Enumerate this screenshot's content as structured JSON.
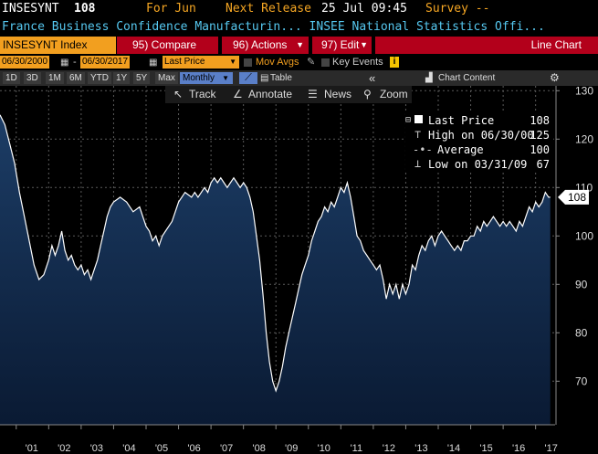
{
  "header": {
    "ticker": "INSESYNT",
    "last": "108",
    "for_label": "For Jun",
    "release_label": "Next Release",
    "release_date": "25 Jul 09:45",
    "survey_label": "Survey --",
    "description": "France Business Confidence Manufacturin... INSEE National Statistics Offi..."
  },
  "tabs": {
    "index": "INSESYNT Index",
    "compare": "95) Compare",
    "actions": "96) Actions",
    "edit": "97) Edit",
    "chart_type": "Line Chart"
  },
  "controls": {
    "start_date": "06/30/2000",
    "end_date": "06/30/2017",
    "price_field": "Last Price",
    "mov_avgs": "Mov Avgs",
    "key_events": "Key Events",
    "periods": [
      "1D",
      "3D",
      "1M",
      "6M",
      "YTD",
      "1Y",
      "5Y",
      "Max"
    ],
    "frequency": "Monthly",
    "table": "Table",
    "chart_content": "Chart Content"
  },
  "tools": {
    "track": "Track",
    "annotate": "Annotate",
    "news": "News",
    "zoom": "Zoom"
  },
  "legend": {
    "last_label": "Last Price",
    "last_value": "108",
    "high_label": "High on 06/30/00",
    "high_value": "125",
    "avg_label": "Average",
    "avg_value": "100",
    "low_label": "Low on 03/31/09",
    "low_value": "67"
  },
  "colors": {
    "line": "#ffffff",
    "area_top": "#1c3d66",
    "area_bottom": "#0a1a33",
    "orange": "#f29f1f",
    "red": "#b3001b",
    "cyan": "#56c8f0"
  },
  "chart_data": {
    "type": "area",
    "title": "",
    "xlabel": "",
    "ylabel": "",
    "ylim": [
      61,
      131
    ],
    "xlim": [
      2000.5,
      2017.6
    ],
    "yticks": [
      70,
      80,
      90,
      100,
      110,
      120,
      130
    ],
    "xticks": [
      {
        "label": "'01",
        "x": 2001.0
      },
      {
        "label": "'02",
        "x": 2002.0
      },
      {
        "label": "'03",
        "x": 2003.0
      },
      {
        "label": "'04",
        "x": 2004.0
      },
      {
        "label": "'05",
        "x": 2005.0
      },
      {
        "label": "'06",
        "x": 2006.0
      },
      {
        "label": "'07",
        "x": 2007.0
      },
      {
        "label": "'08",
        "x": 2008.0
      },
      {
        "label": "'09",
        "x": 2009.0
      },
      {
        "label": "'10",
        "x": 2010.0
      },
      {
        "label": "'11",
        "x": 2011.0
      },
      {
        "label": "'12",
        "x": 2012.0
      },
      {
        "label": "'13",
        "x": 2013.0
      },
      {
        "label": "'14",
        "x": 2014.0
      },
      {
        "label": "'15",
        "x": 2015.0
      },
      {
        "label": "'16",
        "x": 2016.0
      },
      {
        "label": "'17",
        "x": 2017.0
      }
    ],
    "last_value_label": "108",
    "series": [
      {
        "name": "Last Price",
        "points": [
          [
            2000.5,
            125
          ],
          [
            2000.65,
            123
          ],
          [
            2000.8,
            119
          ],
          [
            2000.95,
            115
          ],
          [
            2001.1,
            109
          ],
          [
            2001.25,
            104
          ],
          [
            2001.4,
            99
          ],
          [
            2001.55,
            94
          ],
          [
            2001.7,
            91
          ],
          [
            2001.85,
            92
          ],
          [
            2002.0,
            95
          ],
          [
            2002.1,
            98
          ],
          [
            2002.2,
            96
          ],
          [
            2002.3,
            98
          ],
          [
            2002.4,
            101
          ],
          [
            2002.5,
            97
          ],
          [
            2002.6,
            95
          ],
          [
            2002.7,
            96
          ],
          [
            2002.8,
            94
          ],
          [
            2002.9,
            93
          ],
          [
            2003.0,
            94
          ],
          [
            2003.1,
            92
          ],
          [
            2003.2,
            93
          ],
          [
            2003.3,
            91
          ],
          [
            2003.4,
            93
          ],
          [
            2003.5,
            95
          ],
          [
            2003.6,
            98
          ],
          [
            2003.7,
            101
          ],
          [
            2003.8,
            104
          ],
          [
            2003.9,
            106
          ],
          [
            2004.0,
            107
          ],
          [
            2004.2,
            108
          ],
          [
            2004.4,
            107
          ],
          [
            2004.6,
            105
          ],
          [
            2004.8,
            106
          ],
          [
            2004.9,
            104
          ],
          [
            2005.0,
            102
          ],
          [
            2005.1,
            101
          ],
          [
            2005.2,
            99
          ],
          [
            2005.3,
            100
          ],
          [
            2005.4,
            98
          ],
          [
            2005.5,
            100
          ],
          [
            2005.6,
            101
          ],
          [
            2005.8,
            103
          ],
          [
            2005.9,
            105
          ],
          [
            2006.0,
            107
          ],
          [
            2006.2,
            109
          ],
          [
            2006.4,
            108
          ],
          [
            2006.5,
            109
          ],
          [
            2006.6,
            108
          ],
          [
            2006.8,
            110
          ],
          [
            2006.9,
            109
          ],
          [
            2007.0,
            111
          ],
          [
            2007.1,
            112
          ],
          [
            2007.2,
            111
          ],
          [
            2007.3,
            112
          ],
          [
            2007.4,
            111
          ],
          [
            2007.5,
            110
          ],
          [
            2007.6,
            111
          ],
          [
            2007.7,
            112
          ],
          [
            2007.8,
            111
          ],
          [
            2007.9,
            110
          ],
          [
            2008.0,
            111
          ],
          [
            2008.1,
            110
          ],
          [
            2008.2,
            108
          ],
          [
            2008.3,
            105
          ],
          [
            2008.4,
            100
          ],
          [
            2008.5,
            95
          ],
          [
            2008.6,
            88
          ],
          [
            2008.7,
            80
          ],
          [
            2008.8,
            74
          ],
          [
            2008.9,
            70
          ],
          [
            2009.0,
            68
          ],
          [
            2009.1,
            70
          ],
          [
            2009.2,
            73
          ],
          [
            2009.3,
            77
          ],
          [
            2009.4,
            80
          ],
          [
            2009.5,
            83
          ],
          [
            2009.6,
            86
          ],
          [
            2009.7,
            89
          ],
          [
            2009.8,
            92
          ],
          [
            2009.9,
            94
          ],
          [
            2010.0,
            96
          ],
          [
            2010.1,
            99
          ],
          [
            2010.2,
            101
          ],
          [
            2010.3,
            103
          ],
          [
            2010.4,
            104
          ],
          [
            2010.5,
            106
          ],
          [
            2010.6,
            105
          ],
          [
            2010.7,
            107
          ],
          [
            2010.8,
            106
          ],
          [
            2010.9,
            108
          ],
          [
            2011.0,
            110
          ],
          [
            2011.1,
            109
          ],
          [
            2011.2,
            111
          ],
          [
            2011.3,
            108
          ],
          [
            2011.4,
            104
          ],
          [
            2011.5,
            100
          ],
          [
            2011.6,
            99
          ],
          [
            2011.7,
            97
          ],
          [
            2011.8,
            96
          ],
          [
            2011.9,
            95
          ],
          [
            2012.0,
            94
          ],
          [
            2012.1,
            93
          ],
          [
            2012.2,
            94
          ],
          [
            2012.3,
            91
          ],
          [
            2012.4,
            87
          ],
          [
            2012.5,
            90
          ],
          [
            2012.6,
            88
          ],
          [
            2012.7,
            90
          ],
          [
            2012.8,
            87
          ],
          [
            2012.9,
            90
          ],
          [
            2013.0,
            88
          ],
          [
            2013.1,
            90
          ],
          [
            2013.2,
            94
          ],
          [
            2013.3,
            93
          ],
          [
            2013.4,
            96
          ],
          [
            2013.5,
            98
          ],
          [
            2013.6,
            97
          ],
          [
            2013.7,
            99
          ],
          [
            2013.8,
            100
          ],
          [
            2013.9,
            98
          ],
          [
            2014.0,
            100
          ],
          [
            2014.1,
            101
          ],
          [
            2014.2,
            100
          ],
          [
            2014.3,
            99
          ],
          [
            2014.4,
            98
          ],
          [
            2014.5,
            97
          ],
          [
            2014.6,
            98
          ],
          [
            2014.7,
            97
          ],
          [
            2014.8,
            99
          ],
          [
            2014.9,
            99
          ],
          [
            2015.0,
            100
          ],
          [
            2015.1,
            100
          ],
          [
            2015.2,
            102
          ],
          [
            2015.3,
            101
          ],
          [
            2015.4,
            103
          ],
          [
            2015.5,
            102
          ],
          [
            2015.6,
            103
          ],
          [
            2015.7,
            104
          ],
          [
            2015.8,
            103
          ],
          [
            2015.9,
            102
          ],
          [
            2016.0,
            103
          ],
          [
            2016.1,
            102
          ],
          [
            2016.2,
            103
          ],
          [
            2016.3,
            102
          ],
          [
            2016.4,
            101
          ],
          [
            2016.5,
            103
          ],
          [
            2016.6,
            102
          ],
          [
            2016.7,
            104
          ],
          [
            2016.8,
            106
          ],
          [
            2016.9,
            105
          ],
          [
            2017.0,
            107
          ],
          [
            2017.1,
            106
          ],
          [
            2017.2,
            107
          ],
          [
            2017.3,
            109
          ],
          [
            2017.4,
            108
          ],
          [
            2017.45,
            108
          ]
        ]
      }
    ]
  }
}
